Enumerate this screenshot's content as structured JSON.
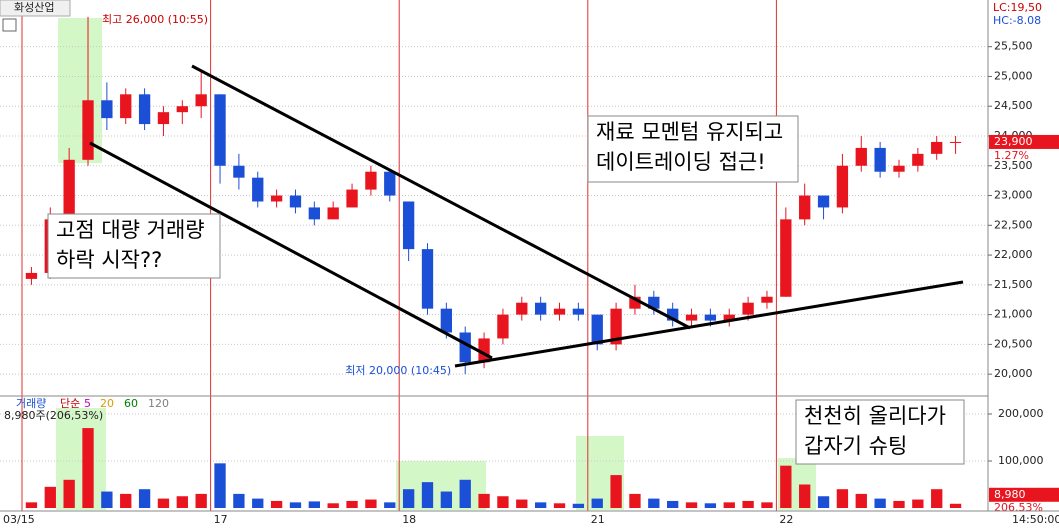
{
  "header": {
    "title": "화성산업",
    "lc": "LC:19,50",
    "hc": "HC:-8.08",
    "time": "14:50:00"
  },
  "chart_data": [
    {
      "type": "candlestick",
      "categories": [
        "03/15",
        null,
        null,
        null,
        null,
        null,
        null,
        null,
        null,
        null,
        "17",
        null,
        null,
        null,
        null,
        null,
        null,
        null,
        null,
        null,
        "18",
        null,
        null,
        null,
        null,
        null,
        null,
        null,
        null,
        null,
        "21",
        null,
        null,
        null,
        null,
        null,
        null,
        null,
        null,
        null,
        "22",
        null,
        null,
        null,
        null,
        null,
        null,
        null,
        null,
        null
      ],
      "open": [
        21600,
        21700,
        22600,
        23600,
        24600,
        24300,
        24700,
        24200,
        24400,
        24500,
        24700,
        23500,
        23300,
        22900,
        23000,
        22800,
        22600,
        22800,
        23100,
        23400,
        22900,
        22100,
        21100,
        20700,
        20200,
        20600,
        21000,
        21200,
        21000,
        21100,
        21000,
        20500,
        21100,
        21300,
        21100,
        20900,
        21000,
        20900,
        21000,
        21200,
        21300,
        22600,
        23000,
        22800,
        23500,
        23800,
        23400,
        23500,
        23700,
        23900
      ],
      "high": [
        21800,
        22800,
        23800,
        26000,
        24900,
        24800,
        24800,
        24500,
        24600,
        25100,
        24700,
        23700,
        23400,
        23100,
        23100,
        22900,
        22900,
        23200,
        23500,
        23400,
        22900,
        22200,
        21200,
        20800,
        20700,
        21100,
        21300,
        21300,
        21200,
        21200,
        21000,
        21200,
        21500,
        21400,
        21200,
        21100,
        21100,
        21100,
        21300,
        21400,
        22800,
        23200,
        23000,
        23700,
        24000,
        23900,
        23600,
        23800,
        24000,
        24000
      ],
      "low": [
        21500,
        21600,
        22500,
        23500,
        24100,
        24200,
        24100,
        24000,
        24200,
        24300,
        23200,
        23100,
        22800,
        22800,
        22700,
        22500,
        22600,
        22800,
        23000,
        22900,
        21900,
        21000,
        20600,
        20000,
        20100,
        20500,
        20900,
        20900,
        20900,
        20900,
        20400,
        20400,
        21000,
        21000,
        20800,
        20800,
        20800,
        20800,
        20900,
        21100,
        21300,
        22500,
        22600,
        22700,
        23400,
        23300,
        23300,
        23400,
        23600,
        23700
      ],
      "close": [
        21700,
        22600,
        23600,
        24600,
        24300,
        24700,
        24200,
        24400,
        24500,
        24700,
        23500,
        23300,
        22900,
        23000,
        22800,
        22600,
        22800,
        23100,
        23400,
        23000,
        22100,
        21100,
        20700,
        20200,
        20600,
        21000,
        21200,
        21000,
        21100,
        21000,
        20500,
        21100,
        21300,
        21100,
        20900,
        21000,
        20900,
        21000,
        21200,
        21300,
        22600,
        23000,
        22800,
        23500,
        23800,
        23400,
        23500,
        23700,
        23900,
        23900
      ],
      "up_color": "#e8141e",
      "down_color": "#1a4fd6",
      "ylim": [
        19650,
        26200
      ],
      "yticks": [
        {
          "value": 20000,
          "label": "20,000"
        },
        {
          "value": 20500,
          "label": "20,500"
        },
        {
          "value": 21000,
          "label": "21,000"
        },
        {
          "value": 21500,
          "label": "21,500"
        },
        {
          "value": 22000,
          "label": "22,000"
        },
        {
          "value": 22500,
          "label": "22,500"
        },
        {
          "value": 23000,
          "label": "23,000"
        },
        {
          "value": 23500,
          "label": "23,500"
        },
        {
          "value": 24000,
          "label": "24,000"
        },
        {
          "value": 24500,
          "label": "24,500"
        },
        {
          "value": 25000,
          "label": "25,000"
        },
        {
          "value": 25500,
          "label": "25,500"
        }
      ],
      "max_label": "최고 26,000 (10:55)",
      "min_label": "최저 20,000 (10:45)",
      "price_tag": "23,900",
      "change_tag": "1.27%",
      "annotations": [
        [
          "고점 대량 거래량",
          "하락 시작??"
        ],
        [
          "재료 모멘텀 유지되고",
          "데이트레이딩 접근!"
        ]
      ]
    },
    {
      "type": "bar",
      "title": "거래량",
      "legend": [
        {
          "name": "단순",
          "color": "#c00000"
        },
        {
          "name": "5",
          "color": "#c000c0"
        },
        {
          "name": "20",
          "color": "#d4a000"
        },
        {
          "name": "60",
          "color": "#008000"
        },
        {
          "name": "120",
          "color": "#808080"
        }
      ],
      "summary": "8,980주(206,53%)",
      "values": [
        12000,
        45000,
        60000,
        170000,
        35000,
        30000,
        40000,
        20000,
        25000,
        30000,
        95000,
        30000,
        20000,
        15000,
        12000,
        14000,
        10000,
        15000,
        18000,
        12000,
        40000,
        55000,
        35000,
        60000,
        30000,
        25000,
        18000,
        12000,
        10000,
        9000,
        20000,
        70000,
        30000,
        20000,
        15000,
        12000,
        10000,
        12000,
        15000,
        12000,
        90000,
        50000,
        25000,
        40000,
        30000,
        20000,
        15000,
        18000,
        40000,
        8980
      ],
      "ylim": [
        0,
        234000
      ],
      "yticks": [
        {
          "value": 100000,
          "label": "100,000"
        },
        {
          "value": 200000,
          "label": "200,000"
        }
      ],
      "last_tag": "8,980",
      "ratio_tag": "206.53%",
      "annotations": [
        [
          "천천히 올리다가",
          "갑자기 슈팅"
        ]
      ]
    }
  ]
}
